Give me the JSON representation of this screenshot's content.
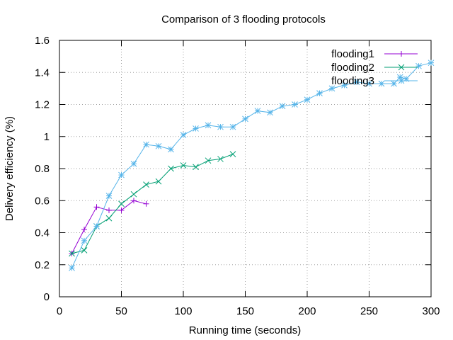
{
  "chart_data": {
    "type": "line",
    "title": "Comparison of 3 flooding protocols",
    "xlabel": "Running time (seconds)",
    "ylabel": "Delivery efficiency (%)",
    "xlim": [
      0,
      300
    ],
    "ylim": [
      0,
      1.6
    ],
    "x_ticks": [
      0,
      50,
      100,
      150,
      200,
      250,
      300
    ],
    "x_tick_labels": [
      "0",
      "50",
      "100",
      "150",
      "200",
      "250",
      "300"
    ],
    "y_ticks": [
      0,
      0.2,
      0.4,
      0.6,
      0.8,
      1.0,
      1.2,
      1.4,
      1.6
    ],
    "y_tick_labels": [
      "0",
      "0.2",
      "0.4",
      "0.6",
      "0.8",
      "1",
      "1.2",
      "1.4",
      "1.6"
    ],
    "grid": true,
    "legend_position": "top-right",
    "series": [
      {
        "name": "flooding1",
        "color": "#9400d3",
        "marker": "plus",
        "points": [
          [
            10,
            0.27
          ],
          [
            20,
            0.42
          ],
          [
            30,
            0.56
          ],
          [
            40,
            0.54
          ],
          [
            50,
            0.54
          ],
          [
            60,
            0.6
          ],
          [
            70,
            0.58
          ]
        ]
      },
      {
        "name": "flooding2",
        "color": "#009e73",
        "marker": "cross",
        "points": [
          [
            10,
            0.27
          ],
          [
            20,
            0.29
          ],
          [
            30,
            0.44
          ],
          [
            40,
            0.49
          ],
          [
            50,
            0.58
          ],
          [
            60,
            0.64
          ],
          [
            70,
            0.7
          ],
          [
            80,
            0.72
          ],
          [
            90,
            0.8
          ],
          [
            100,
            0.82
          ],
          [
            110,
            0.81
          ],
          [
            120,
            0.85
          ],
          [
            130,
            0.86
          ],
          [
            140,
            0.89
          ]
        ]
      },
      {
        "name": "flooding3",
        "color": "#56b4e9",
        "marker": "star",
        "points": [
          [
            10,
            0.18
          ],
          [
            20,
            0.35
          ],
          [
            30,
            0.44
          ],
          [
            40,
            0.63
          ],
          [
            50,
            0.76
          ],
          [
            60,
            0.83
          ],
          [
            70,
            0.95
          ],
          [
            80,
            0.94
          ],
          [
            90,
            0.92
          ],
          [
            100,
            1.01
          ],
          [
            110,
            1.05
          ],
          [
            120,
            1.07
          ],
          [
            130,
            1.06
          ],
          [
            140,
            1.06
          ],
          [
            150,
            1.11
          ],
          [
            160,
            1.16
          ],
          [
            170,
            1.15
          ],
          [
            180,
            1.19
          ],
          [
            190,
            1.2
          ],
          [
            200,
            1.23
          ],
          [
            210,
            1.27
          ],
          [
            220,
            1.3
          ],
          [
            230,
            1.32
          ],
          [
            240,
            1.34
          ],
          [
            250,
            1.33
          ],
          [
            260,
            1.33
          ],
          [
            270,
            1.33
          ],
          [
            275,
            1.37
          ],
          [
            280,
            1.36
          ],
          [
            290,
            1.44
          ],
          [
            300,
            1.46
          ]
        ]
      }
    ]
  }
}
